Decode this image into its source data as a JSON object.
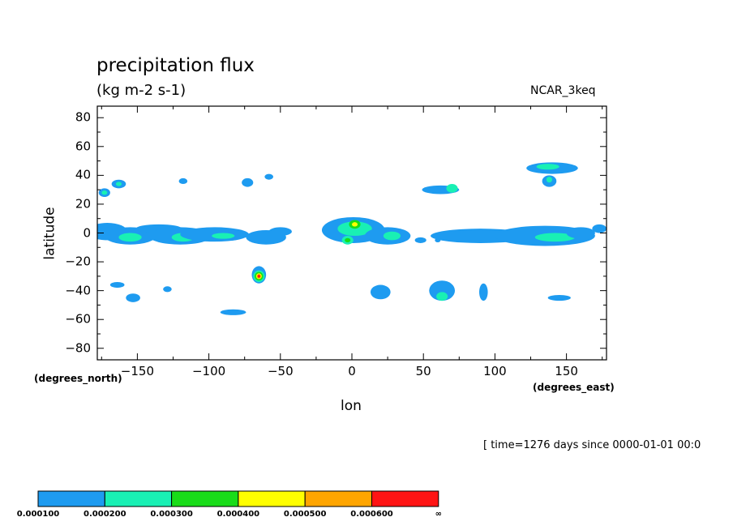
{
  "chart_data": {
    "type": "heatmap",
    "title": "precipitation flux",
    "units": "(kg m-2 s-1)",
    "source": "NCAR_3keq",
    "xlabel": "lon",
    "ylabel": "latitude",
    "x_units_note": "(degrees_east)",
    "y_units_note": "(degrees_north)",
    "time_note": "[ time=1276 days since 0000-01-01 00:0",
    "xlim": [
      -178,
      178
    ],
    "ylim": [
      -88,
      88
    ],
    "x_ticks": [
      -150,
      -100,
      -50,
      0,
      50,
      100,
      150
    ],
    "y_ticks": [
      80,
      60,
      40,
      20,
      0,
      -20,
      -40,
      -60,
      -80
    ],
    "x_tick_labels": [
      "−150",
      "−100",
      "−50",
      "0",
      "50",
      "100",
      "150"
    ],
    "y_tick_labels": [
      "80",
      "60",
      "40",
      "20",
      "0",
      "−20",
      "−40",
      "−60",
      "−80"
    ],
    "colorbar": {
      "levels": [
        "0.000100",
        "0.000200",
        "0.000300",
        "0.000400",
        "0.000500",
        "0.000600",
        "∞"
      ],
      "colors": [
        "#1e9bf0",
        "#19f0b4",
        "#19dc19",
        "#ffff00",
        "#ffa500",
        "#ff1414"
      ]
    },
    "regions": [
      {
        "lon": -171,
        "lat": 1,
        "dlon": 14,
        "dlat": 6,
        "level": 1
      },
      {
        "lon": -155,
        "lat": -2,
        "dlon": 18,
        "dlat": 6,
        "level": 1
      },
      {
        "lon": -155,
        "lat": -3,
        "dlon": 8,
        "dlat": 3,
        "level": 2
      },
      {
        "lon": -135,
        "lat": 3,
        "dlon": 16,
        "dlat": 3,
        "level": 1
      },
      {
        "lon": -120,
        "lat": -2,
        "dlon": 22,
        "dlat": 6,
        "level": 1
      },
      {
        "lon": -118,
        "lat": -3,
        "dlon": 8,
        "dlat": 3,
        "level": 2
      },
      {
        "lon": -96,
        "lat": -1,
        "dlon": 24,
        "dlat": 5,
        "level": 1
      },
      {
        "lon": -90,
        "lat": -2,
        "dlon": 8,
        "dlat": 2,
        "level": 2
      },
      {
        "lon": -60,
        "lat": -3,
        "dlon": 14,
        "dlat": 5,
        "level": 1
      },
      {
        "lon": -50,
        "lat": 1,
        "dlon": 8,
        "dlat": 3,
        "level": 1
      },
      {
        "lon": 1,
        "lat": 2,
        "dlon": 22,
        "dlat": 9,
        "level": 1
      },
      {
        "lon": 2,
        "lat": 3,
        "dlon": 12,
        "dlat": 5,
        "level": 2
      },
      {
        "lon": 2,
        "lat": 6,
        "dlon": 4,
        "dlat": 3,
        "level": 3
      },
      {
        "lon": 2,
        "lat": 6,
        "dlon": 2,
        "dlat": 1.5,
        "level": 4
      },
      {
        "lon": -3,
        "lat": -5,
        "dlon": 4,
        "dlat": 3,
        "level": 2
      },
      {
        "lon": -3,
        "lat": -5,
        "dlon": 2,
        "dlat": 1.5,
        "level": 3
      },
      {
        "lon": 25,
        "lat": -2,
        "dlon": 16,
        "dlat": 6,
        "level": 1
      },
      {
        "lon": 28,
        "lat": -2,
        "dlon": 6,
        "dlat": 3,
        "level": 2
      },
      {
        "lon": 48,
        "lat": -5,
        "dlon": 4,
        "dlat": 2,
        "level": 1
      },
      {
        "lon": 60,
        "lat": -5,
        "dlon": 2,
        "dlat": 1.5,
        "level": 1
      },
      {
        "lon": 90,
        "lat": -2,
        "dlon": 35,
        "dlat": 5,
        "level": 1
      },
      {
        "lon": 135,
        "lat": -2,
        "dlon": 35,
        "dlat": 7,
        "level": 1
      },
      {
        "lon": 142,
        "lat": -3,
        "dlon": 14,
        "dlat": 3,
        "level": 2
      },
      {
        "lon": 160,
        "lat": 0,
        "dlon": 10,
        "dlat": 4,
        "level": 1
      },
      {
        "lon": 173,
        "lat": 3,
        "dlon": 5,
        "dlat": 3,
        "level": 1
      },
      {
        "lon": 140,
        "lat": 45,
        "dlon": 18,
        "dlat": 4,
        "level": 1
      },
      {
        "lon": 137,
        "lat": 46,
        "dlon": 8,
        "dlat": 2,
        "level": 2
      },
      {
        "lon": 138,
        "lat": 36,
        "dlon": 5,
        "dlat": 4,
        "level": 1
      },
      {
        "lon": 138,
        "lat": 37,
        "dlon": 2,
        "dlat": 2,
        "level": 2
      },
      {
        "lon": -173,
        "lat": 28,
        "dlon": 4,
        "dlat": 3,
        "level": 1
      },
      {
        "lon": -173,
        "lat": 28,
        "dlon": 2,
        "dlat": 1.5,
        "level": 2
      },
      {
        "lon": -163,
        "lat": 34,
        "dlon": 5,
        "dlat": 3,
        "level": 1
      },
      {
        "lon": -163,
        "lat": 34,
        "dlon": 2,
        "dlat": 1.5,
        "level": 2
      },
      {
        "lon": -118,
        "lat": 36,
        "dlon": 3,
        "dlat": 2,
        "level": 1
      },
      {
        "lon": -73,
        "lat": 35,
        "dlon": 4,
        "dlat": 3,
        "level": 1
      },
      {
        "lon": -58,
        "lat": 39,
        "dlon": 3,
        "dlat": 2,
        "level": 1
      },
      {
        "lon": 62,
        "lat": 30,
        "dlon": 13,
        "dlat": 3,
        "level": 1
      },
      {
        "lon": 70,
        "lat": 31,
        "dlon": 4,
        "dlat": 3,
        "level": 2
      },
      {
        "lon": -65,
        "lat": -29,
        "dlon": 5,
        "dlat": 6,
        "level": 1
      },
      {
        "lon": -65,
        "lat": -30,
        "dlon": 4,
        "dlat": 4,
        "level": 2
      },
      {
        "lon": -65,
        "lat": -30,
        "dlon": 3,
        "dlat": 3,
        "level": 3
      },
      {
        "lon": -65,
        "lat": -30,
        "dlon": 2,
        "dlat": 2,
        "level": 4
      },
      {
        "lon": -65,
        "lat": -30,
        "dlon": 1.4,
        "dlat": 1.5,
        "level": 5
      },
      {
        "lon": -65,
        "lat": -30,
        "dlon": 0.9,
        "dlat": 1,
        "level": 6
      },
      {
        "lon": -164,
        "lat": -36,
        "dlon": 5,
        "dlat": 2,
        "level": 1
      },
      {
        "lon": -153,
        "lat": -45,
        "dlon": 5,
        "dlat": 3,
        "level": 1
      },
      {
        "lon": -129,
        "lat": -39,
        "dlon": 3,
        "dlat": 2,
        "level": 1
      },
      {
        "lon": -83,
        "lat": -55,
        "dlon": 9,
        "dlat": 2,
        "level": 1
      },
      {
        "lon": 20,
        "lat": -41,
        "dlon": 7,
        "dlat": 5,
        "level": 1
      },
      {
        "lon": 63,
        "lat": -40,
        "dlon": 9,
        "dlat": 7,
        "level": 1
      },
      {
        "lon": 63,
        "lat": -44,
        "dlon": 4,
        "dlat": 3,
        "level": 2
      },
      {
        "lon": 92,
        "lat": -41,
        "dlon": 3,
        "dlat": 6,
        "level": 1
      },
      {
        "lon": 145,
        "lat": -45,
        "dlon": 8,
        "dlat": 2,
        "level": 1
      }
    ]
  }
}
